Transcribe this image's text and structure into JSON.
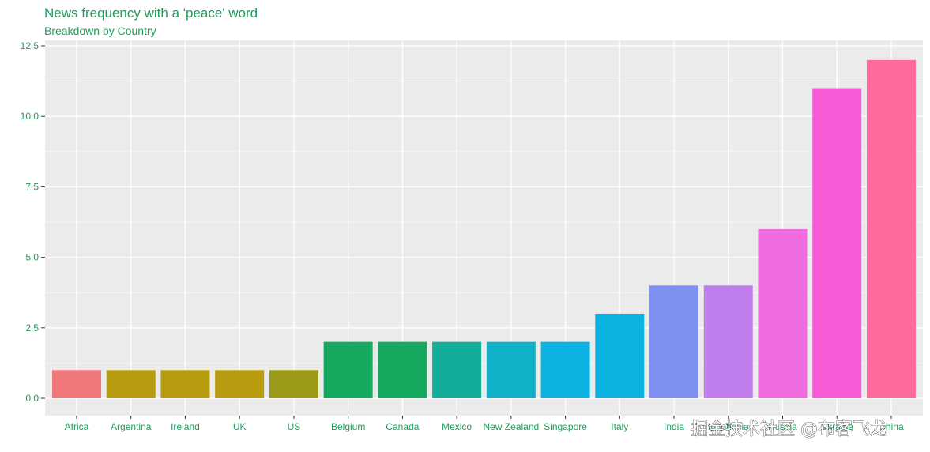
{
  "chart_data": {
    "type": "bar",
    "title": "News frequency with a 'peace' word",
    "subtitle": "Breakdown by Country",
    "xlabel": "",
    "ylabel": "",
    "categories": [
      "Africa",
      "Argentina",
      "Ireland",
      "UK",
      "US",
      "Belgium",
      "Canada",
      "Mexico",
      "New Zealand",
      "Singapore",
      "Italy",
      "India",
      "Indonesia",
      "Russia",
      "Ukraine",
      "China"
    ],
    "values": [
      1,
      1,
      1,
      1,
      1,
      2,
      2,
      2,
      2,
      2,
      3,
      4,
      4,
      6,
      11,
      12
    ],
    "colors": [
      "#F0787A",
      "#B89C10",
      "#B89C10",
      "#B89C10",
      "#9A9A18",
      "#15A85E",
      "#15A85E",
      "#12AE9A",
      "#0FB0C8",
      "#0BB2E2",
      "#0BB2E2",
      "#8090F2",
      "#C07EEC",
      "#F06AE0",
      "#F85AD8",
      "#FF6A9C"
    ],
    "ylim": [
      0,
      12.5
    ],
    "yticks": [
      0.0,
      2.5,
      5.0,
      7.5,
      10.0,
      12.5
    ],
    "ytick_labels": [
      "0.0",
      "2.5",
      "5.0",
      "7.5",
      "10.0",
      "12.5"
    ],
    "grid": true,
    "legend": "none",
    "text_color": "#1B9E5A",
    "panel_color": "#EBEBEB"
  },
  "watermark": "掘金技术社区 @布客飞龙"
}
